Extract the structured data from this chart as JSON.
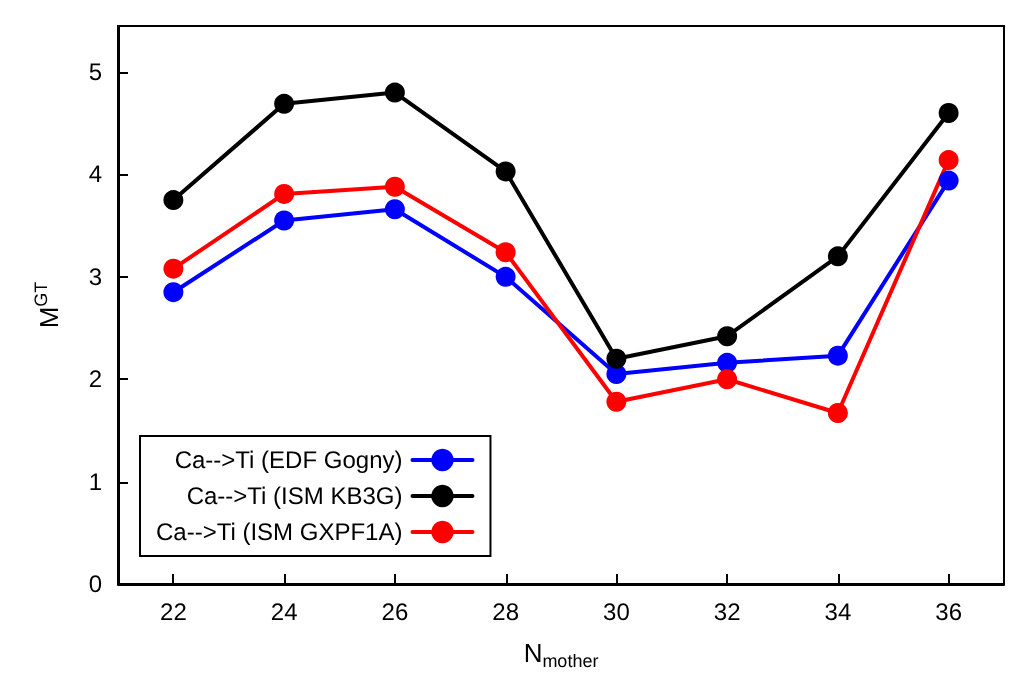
{
  "chart_data": {
    "type": "line",
    "xlabel": "N$_{mother}$",
    "ylabel": "M$^{GT}$",
    "x": [
      22,
      24,
      26,
      28,
      30,
      32,
      34,
      36
    ],
    "xlim": [
      21,
      37
    ],
    "xticks": [
      22,
      24,
      26,
      28,
      30,
      32,
      34,
      36
    ],
    "ylim": [
      0,
      5.45
    ],
    "yticks": [
      0,
      1,
      2,
      3,
      4,
      5
    ],
    "grid": false,
    "legend": "bottom left",
    "marker": "circle",
    "line_style": "solid",
    "series": [
      {
        "name": "Ca-->Ti (EDF Gogny)",
        "color": "#0000ff",
        "values": [
          2.85,
          3.55,
          3.66,
          3.0,
          2.05,
          2.16,
          2.23,
          3.94
        ]
      },
      {
        "name": "Ca-->Ti (ISM KB3G)",
        "color": "#000000",
        "values": [
          3.75,
          4.69,
          4.8,
          4.03,
          2.2,
          2.42,
          3.2,
          4.6
        ]
      },
      {
        "name": "Ca-->Ti (ISM GXPF1A)",
        "color": "#ff0000",
        "values": [
          3.08,
          3.81,
          3.88,
          3.24,
          1.78,
          2.0,
          1.67,
          4.14
        ]
      }
    ]
  }
}
